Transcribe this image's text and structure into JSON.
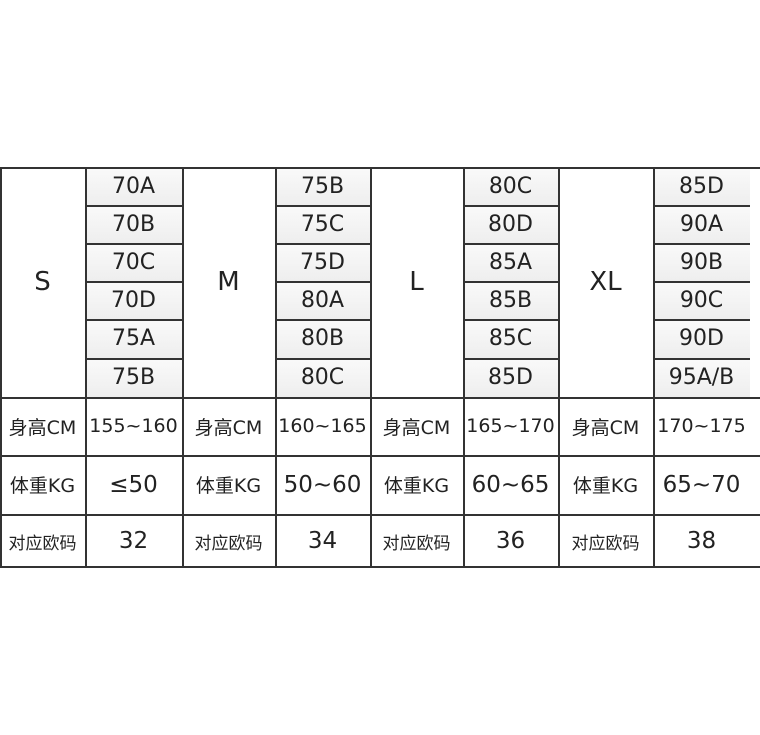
{
  "groups": [
    {
      "size": "S",
      "cups": [
        "70A",
        "70B",
        "70C",
        "70D",
        "75A",
        "75B"
      ],
      "height_label": "身高CM",
      "height": "155~160",
      "weight_label": "体重KG",
      "weight": "≤50",
      "eu_label": "对应欧码",
      "eu": "32"
    },
    {
      "size": "M",
      "cups": [
        "75B",
        "75C",
        "75D",
        "80A",
        "80B",
        "80C"
      ],
      "height_label": "身高CM",
      "height": "160~165",
      "weight_label": "体重KG",
      "weight": "50~60",
      "eu_label": "对应欧码",
      "eu": "34"
    },
    {
      "size": "L",
      "cups": [
        "80C",
        "80D",
        "85A",
        "85B",
        "85C",
        "85D"
      ],
      "height_label": "身高CM",
      "height": "165~170",
      "weight_label": "体重KG",
      "weight": "60~65",
      "eu_label": "对应欧码",
      "eu": "36"
    },
    {
      "size": "XL",
      "cups": [
        "85D",
        "90A",
        "90B",
        "90C",
        "90D",
        "95A/B"
      ],
      "height_label": "身高CM",
      "height": "170~175",
      "weight_label": "体重KG",
      "weight": "65~70",
      "eu_label": "对应欧码",
      "eu": "38"
    }
  ]
}
